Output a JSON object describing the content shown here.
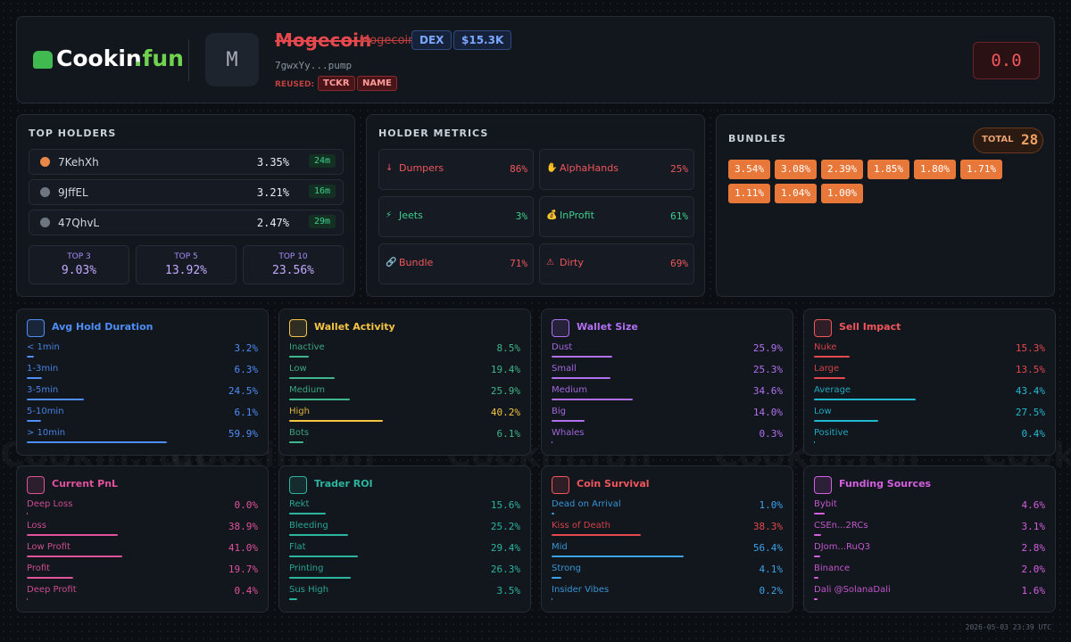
{
  "header": {
    "logo_a": "Cookin",
    "logo_b": ".fun",
    "avatar": "M",
    "name": "Mogecoin",
    "symbol": "Mogecoin",
    "badges": [
      "DEX",
      "$15.3K"
    ],
    "address": "7gwxYy...pump",
    "reused_label": "REUSED:",
    "reused": [
      "TCKR",
      "NAME"
    ],
    "score": "0.0"
  },
  "watermark": "Cookin.fun",
  "top_holders": {
    "title": "TOP HOLDERS",
    "holders": [
      {
        "name": "7KehXh",
        "pct": "3.35%",
        "age": "24m"
      },
      {
        "name": "9JffEL",
        "pct": "3.21%",
        "age": "16m"
      },
      {
        "name": "47QhvL",
        "pct": "2.47%",
        "age": "29m"
      }
    ],
    "summary": [
      {
        "label": "TOP 3",
        "value": "9.03%"
      },
      {
        "label": "TOP 5",
        "value": "13.92%"
      },
      {
        "label": "TOP 10",
        "value": "23.56%"
      }
    ]
  },
  "holder_metrics": {
    "title": "HOLDER METRICS",
    "items": [
      {
        "icon": "↓",
        "label": "Dumpers",
        "value": "86%",
        "color": "#f0565c"
      },
      {
        "icon": "✋",
        "label": "AlphaHands",
        "value": "25%",
        "color": "#f0565c"
      },
      {
        "icon": "⚡",
        "label": "Jeets",
        "value": "3%",
        "color": "#3fcf8e"
      },
      {
        "icon": "💰",
        "label": "InProfit",
        "value": "61%",
        "color": "#3fcf8e"
      },
      {
        "icon": "🔗",
        "label": "Bundle",
        "value": "71%",
        "color": "#f0565c"
      },
      {
        "icon": "⚠",
        "label": "Dirty",
        "value": "69%",
        "color": "#f0565c"
      }
    ]
  },
  "bundles": {
    "title": "BUNDLES",
    "total_label": "TOTAL",
    "total": 28,
    "chips": [
      "3.54%",
      "3.08%",
      "2.39%",
      "1.85%",
      "1.80%",
      "1.71%",
      "1.11%",
      "1.04%",
      "1.00%"
    ]
  },
  "cards": [
    {
      "title": "Avg Hold Duration",
      "color": "#4e8ef7",
      "rows": [
        {
          "name": "< 1min",
          "value": 3.2,
          "label": "3.2%",
          "color": "#4e8ef7"
        },
        {
          "name": "1-3min",
          "value": 6.3,
          "label": "6.3%",
          "color": "#4e8ef7"
        },
        {
          "name": "3-5min",
          "value": 24.5,
          "label": "24.5%",
          "color": "#4e8ef7"
        },
        {
          "name": "5-10min",
          "value": 6.1,
          "label": "6.1%",
          "color": "#4e8ef7"
        },
        {
          "name": "> 10min",
          "value": 59.9,
          "label": "59.9%",
          "color": "#4e8ef7"
        }
      ]
    },
    {
      "title": "Wallet Activity",
      "color": "#f5c542",
      "rows": [
        {
          "name": "Inactive",
          "value": 8.5,
          "label": "8.5%",
          "color": "#3fb68b"
        },
        {
          "name": "Low",
          "value": 19.4,
          "label": "19.4%",
          "color": "#3fb68b"
        },
        {
          "name": "Medium",
          "value": 25.9,
          "label": "25.9%",
          "color": "#3fb68b"
        },
        {
          "name": "High",
          "value": 40.2,
          "label": "40.2%",
          "color": "#f5c542"
        },
        {
          "name": "Bots",
          "value": 6.1,
          "label": "6.1%",
          "color": "#3fb68b"
        }
      ]
    },
    {
      "title": "Wallet Size",
      "color": "#b070f0",
      "rows": [
        {
          "name": "Dust",
          "value": 25.9,
          "label": "25.9%",
          "color": "#b070f0"
        },
        {
          "name": "Small",
          "value": 25.3,
          "label": "25.3%",
          "color": "#b070f0"
        },
        {
          "name": "Medium",
          "value": 34.6,
          "label": "34.6%",
          "color": "#b070f0"
        },
        {
          "name": "Big",
          "value": 14.0,
          "label": "14.0%",
          "color": "#b070f0"
        },
        {
          "name": "Whales",
          "value": 0.3,
          "label": "0.3%",
          "color": "#b070f0"
        }
      ]
    },
    {
      "title": "Sell Impact",
      "color": "#f0565c",
      "rows": [
        {
          "name": "Nuke",
          "value": 15.3,
          "label": "15.3%",
          "color": "#e5484d"
        },
        {
          "name": "Large",
          "value": 13.5,
          "label": "13.5%",
          "color": "#e5484d"
        },
        {
          "name": "Average",
          "value": 43.4,
          "label": "43.4%",
          "color": "#22b8cf"
        },
        {
          "name": "Low",
          "value": 27.5,
          "label": "27.5%",
          "color": "#22b8cf"
        },
        {
          "name": "Positive",
          "value": 0.4,
          "label": "0.4%",
          "color": "#22b8cf"
        }
      ]
    },
    {
      "title": "Current PnL",
      "color": "#e0529c",
      "rows": [
        {
          "name": "Deep Loss",
          "value": 0.0,
          "label": "0.0%",
          "color": "#e0529c"
        },
        {
          "name": "Loss",
          "value": 38.9,
          "label": "38.9%",
          "color": "#e0529c"
        },
        {
          "name": "Low Profit",
          "value": 41.0,
          "label": "41.0%",
          "color": "#e0529c"
        },
        {
          "name": "Profit",
          "value": 19.7,
          "label": "19.7%",
          "color": "#e0529c"
        },
        {
          "name": "Deep Profit",
          "value": 0.4,
          "label": "0.4%",
          "color": "#e0529c"
        }
      ]
    },
    {
      "title": "Trader ROI",
      "color": "#2bb5a0",
      "rows": [
        {
          "name": "Rekt",
          "value": 15.6,
          "label": "15.6%",
          "color": "#2bb5a0"
        },
        {
          "name": "Bleeding",
          "value": 25.2,
          "label": "25.2%",
          "color": "#2bb5a0"
        },
        {
          "name": "Flat",
          "value": 29.4,
          "label": "29.4%",
          "color": "#2bb5a0"
        },
        {
          "name": "Printing",
          "value": 26.3,
          "label": "26.3%",
          "color": "#2bb5a0"
        },
        {
          "name": "Sus High",
          "value": 3.5,
          "label": "3.5%",
          "color": "#2bb5a0"
        }
      ]
    },
    {
      "title": "Coin Survival",
      "color": "#f0565c",
      "rows": [
        {
          "name": "Dead on Arrival",
          "value": 1.0,
          "label": "1.0%",
          "color": "#3ba3e8"
        },
        {
          "name": "Kiss of Death",
          "value": 38.3,
          "label": "38.3%",
          "color": "#e5484d"
        },
        {
          "name": "Mid",
          "value": 56.4,
          "label": "56.4%",
          "color": "#3ba3e8"
        },
        {
          "name": "Strong",
          "value": 4.1,
          "label": "4.1%",
          "color": "#3ba3e8"
        },
        {
          "name": "Insider Vibes",
          "value": 0.2,
          "label": "0.2%",
          "color": "#3ba3e8"
        }
      ]
    },
    {
      "title": "Funding Sources",
      "color": "#d45fe0",
      "rows": [
        {
          "name": "Bybit",
          "value": 4.6,
          "label": "4.6%",
          "color": "#d45fe0"
        },
        {
          "name": "CSEn...2RCs",
          "value": 3.1,
          "label": "3.1%",
          "color": "#d45fe0"
        },
        {
          "name": "DJom...RuQ3",
          "value": 2.8,
          "label": "2.8%",
          "color": "#d45fe0"
        },
        {
          "name": "Binance",
          "value": 2.0,
          "label": "2.0%",
          "color": "#d45fe0"
        },
        {
          "name": "Dali @SolanaDali",
          "value": 1.6,
          "label": "1.6%",
          "color": "#d45fe0"
        }
      ]
    }
  ],
  "footer": "2026-05-03 23:39 UTC"
}
